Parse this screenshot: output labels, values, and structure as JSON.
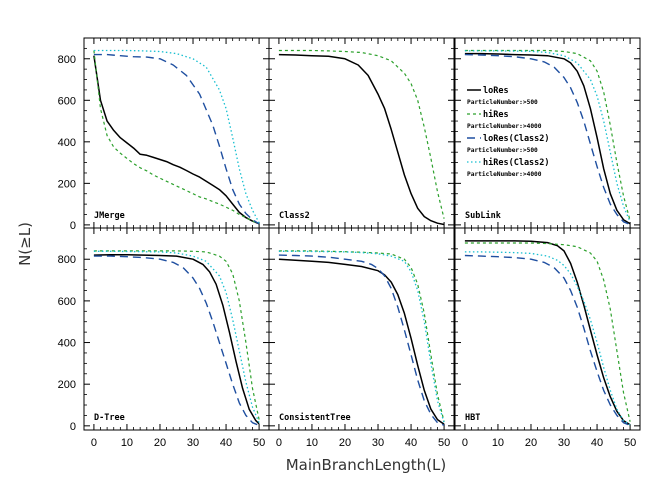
{
  "chart_data": {
    "type": "line",
    "xlabel": "MainBranchLength(L)",
    "ylabel": "N(≥L)",
    "xlim": [
      -3,
      53
    ],
    "xticks": [
      0,
      10,
      20,
      30,
      40,
      50
    ],
    "legend": {
      "placement": "inside SubLink panel, left",
      "entries": [
        {
          "name": "loRes",
          "sub": "ParticleNumber:>500"
        },
        {
          "name": "hiRes",
          "sub": "ParticleNumber:>4000"
        },
        {
          "name": "loRes(Class2)",
          "sub": "ParticleNumber:>500"
        },
        {
          "name": "hiRes(Class2)",
          "sub": "ParticleNumber:>4000"
        }
      ]
    },
    "colors": {
      "loRes": "#000000",
      "hiRes": "#2ca02c",
      "loRes(Class2)": "#1f4fa0",
      "hiRes(Class2)": "#17bfd0"
    },
    "rows": [
      {
        "ylim": [
          -15,
          900
        ],
        "yticks": [
          0,
          200,
          400,
          600,
          800
        ]
      },
      {
        "ylim": [
          -20,
          950
        ],
        "yticks": [
          0,
          200,
          400,
          600,
          800
        ]
      }
    ],
    "panels": [
      {
        "label": "JMerge",
        "series": [
          {
            "name": "loRes",
            "x": [
              0,
              2,
              4,
              6,
              8,
              10,
              12,
              14,
              16,
              18,
              20,
              22,
              24,
              26,
              28,
              30,
              32,
              34,
              36,
              38,
              40,
              42,
              44,
              46,
              48,
              50
            ],
            "y": [
              815,
              600,
              500,
              455,
              420,
              395,
              370,
              340,
              335,
              325,
              315,
              305,
              290,
              278,
              262,
              245,
              230,
              210,
              190,
              170,
              140,
              100,
              60,
              35,
              18,
              5
            ]
          },
          {
            "name": "hiRes",
            "x": [
              0,
              2,
              4,
              6,
              8,
              10,
              12,
              14,
              16,
              18,
              20,
              22,
              24,
              26,
              28,
              30,
              32,
              34,
              36,
              38,
              40,
              42,
              44,
              46,
              48,
              50
            ],
            "y": [
              840,
              560,
              430,
              375,
              345,
              320,
              295,
              275,
              260,
              240,
              225,
              210,
              195,
              180,
              165,
              150,
              135,
              125,
              112,
              100,
              85,
              70,
              50,
              35,
              18,
              5
            ]
          },
          {
            "name": "loRes(Class2)",
            "x": [
              0,
              4,
              8,
              12,
              16,
              20,
              24,
              28,
              32,
              36,
              38,
              40,
              42,
              44,
              46,
              48,
              50
            ],
            "y": [
              820,
              820,
              815,
              810,
              808,
              800,
              770,
              720,
              630,
              480,
              380,
              270,
              170,
              100,
              55,
              25,
              5
            ]
          },
          {
            "name": "hiRes(Class2)",
            "x": [
              0,
              5,
              10,
              15,
              20,
              25,
              30,
              34,
              38,
              40,
              42,
              44,
              46,
              48,
              50
            ],
            "y": [
              840,
              840,
              840,
              838,
              835,
              825,
              800,
              760,
              650,
              560,
              420,
              270,
              150,
              70,
              10
            ]
          }
        ]
      },
      {
        "label": "Class2",
        "series": [
          {
            "name": "loRes",
            "x": [
              0,
              5,
              10,
              15,
              20,
              24,
              27,
              30,
              32,
              34,
              36,
              38,
              40,
              42,
              44,
              46,
              48,
              50
            ],
            "y": [
              820,
              818,
              815,
              812,
              800,
              770,
              720,
              630,
              560,
              460,
              350,
              240,
              150,
              80,
              40,
              20,
              8,
              2
            ]
          },
          {
            "name": "hiRes",
            "x": [
              0,
              5,
              10,
              15,
              20,
              25,
              30,
              34,
              38,
              40,
              42,
              44,
              46,
              48,
              50
            ],
            "y": [
              840,
              840,
              840,
              838,
              835,
              830,
              815,
              790,
              730,
              680,
              600,
              470,
              320,
              160,
              30
            ]
          }
        ]
      },
      {
        "label": "SubLink",
        "series": [
          {
            "name": "loRes",
            "x": [
              0,
              5,
              10,
              15,
              20,
              25,
              30,
              32,
              34,
              36,
              38,
              40,
              42,
              44,
              46,
              48,
              50
            ],
            "y": [
              825,
              825,
              823,
              820,
              818,
              815,
              800,
              780,
              740,
              670,
              560,
              420,
              270,
              150,
              70,
              25,
              5
            ]
          },
          {
            "name": "hiRes",
            "x": [
              0,
              5,
              10,
              15,
              20,
              25,
              30,
              34,
              38,
              40,
              42,
              44,
              46,
              48,
              50
            ],
            "y": [
              840,
              840,
              840,
              840,
              840,
              840,
              835,
              825,
              790,
              740,
              640,
              480,
              300,
              140,
              20
            ]
          },
          {
            "name": "loRes(Class2)",
            "x": [
              0,
              5,
              10,
              15,
              20,
              24,
              27,
              30,
              32,
              34,
              36,
              38,
              40,
              42,
              44,
              46,
              48,
              50
            ],
            "y": [
              820,
              818,
              815,
              810,
              800,
              785,
              760,
              710,
              660,
              590,
              500,
              390,
              280,
              180,
              100,
              50,
              15,
              2
            ]
          },
          {
            "name": "hiRes(Class2)",
            "x": [
              0,
              5,
              10,
              15,
              20,
              25,
              30,
              34,
              38,
              40,
              42,
              44,
              46,
              48,
              50
            ],
            "y": [
              838,
              838,
              838,
              837,
              836,
              830,
              815,
              780,
              700,
              620,
              500,
              350,
              200,
              90,
              15
            ]
          }
        ]
      },
      {
        "label": "D-Tree",
        "series": [
          {
            "name": "loRes",
            "x": [
              0,
              5,
              10,
              15,
              20,
              25,
              30,
              33,
              35,
              37,
              39,
              41,
              43,
              45,
              47,
              49,
              50
            ],
            "y": [
              820,
              822,
              822,
              820,
              818,
              815,
              800,
              775,
              740,
              680,
              580,
              450,
              310,
              180,
              80,
              25,
              10
            ]
          },
          {
            "name": "hiRes",
            "x": [
              0,
              5,
              10,
              15,
              20,
              25,
              30,
              34,
              38,
              40,
              42,
              44,
              46,
              48,
              50
            ],
            "y": [
              840,
              840,
              840,
              840,
              840,
              840,
              838,
              835,
              815,
              790,
              730,
              600,
              400,
              180,
              30
            ]
          },
          {
            "name": "loRes(Class2)",
            "x": [
              0,
              5,
              10,
              15,
              20,
              24,
              27,
              30,
              32,
              34,
              36,
              38,
              40,
              42,
              44,
              46,
              48,
              50
            ],
            "y": [
              815,
              815,
              812,
              808,
              800,
              785,
              760,
              710,
              660,
              590,
              500,
              400,
              300,
              200,
              110,
              50,
              15,
              2
            ]
          },
          {
            "name": "hiRes(Class2)",
            "x": [
              0,
              5,
              10,
              15,
              20,
              25,
              30,
              34,
              38,
              40,
              42,
              44,
              46,
              48,
              50
            ],
            "y": [
              838,
              838,
              837,
              836,
              835,
              830,
              815,
              790,
              720,
              640,
              510,
              360,
              210,
              90,
              15
            ]
          }
        ]
      },
      {
        "label": "ConsistentTree",
        "series": [
          {
            "name": "loRes",
            "x": [
              0,
              5,
              10,
              15,
              20,
              25,
              30,
              32,
              34,
              36,
              38,
              40,
              42,
              44,
              46,
              48,
              50
            ],
            "y": [
              800,
              795,
              790,
              785,
              775,
              765,
              745,
              725,
              690,
              630,
              540,
              420,
              290,
              170,
              80,
              30,
              8
            ]
          },
          {
            "name": "hiRes",
            "x": [
              0,
              5,
              10,
              15,
              20,
              25,
              30,
              34,
              38,
              40,
              42,
              44,
              46,
              48,
              50
            ],
            "y": [
              840,
              840,
              840,
              838,
              836,
              834,
              830,
              825,
              800,
              760,
              680,
              540,
              340,
              150,
              20
            ]
          },
          {
            "name": "loRes(Class2)",
            "x": [
              0,
              5,
              10,
              15,
              20,
              25,
              28,
              30,
              32,
              34,
              36,
              38,
              40,
              42,
              44,
              46,
              48,
              50
            ],
            "y": [
              820,
              818,
              815,
              810,
              800,
              790,
              775,
              755,
              720,
              660,
              570,
              460,
              340,
              220,
              120,
              55,
              15,
              3
            ]
          },
          {
            "name": "hiRes(Class2)",
            "x": [
              0,
              5,
              10,
              15,
              20,
              25,
              30,
              34,
              38,
              40,
              42,
              44,
              46,
              48,
              50
            ],
            "y": [
              838,
              838,
              837,
              836,
              835,
              832,
              826,
              815,
              790,
              740,
              650,
              500,
              300,
              120,
              15
            ]
          }
        ]
      },
      {
        "label": "HBT",
        "series": [
          {
            "name": "loRes",
            "x": [
              0,
              5,
              10,
              15,
              20,
              25,
              28,
              30,
              32,
              34,
              36,
              38,
              40,
              42,
              44,
              46,
              48,
              50
            ],
            "y": [
              888,
              888,
              888,
              888,
              886,
              880,
              865,
              840,
              780,
              690,
              580,
              460,
              340,
              230,
              140,
              70,
              25,
              5
            ]
          },
          {
            "name": "hiRes",
            "x": [
              0,
              5,
              10,
              15,
              20,
              25,
              30,
              34,
              38,
              40,
              42,
              44,
              46,
              48,
              50
            ],
            "y": [
              878,
              878,
              878,
              878,
              878,
              875,
              870,
              860,
              830,
              790,
              700,
              560,
              360,
              160,
              20
            ]
          },
          {
            "name": "loRes(Class2)",
            "x": [
              0,
              5,
              10,
              15,
              20,
              24,
              27,
              30,
              32,
              34,
              36,
              38,
              40,
              42,
              44,
              46,
              48,
              50
            ],
            "y": [
              818,
              815,
              812,
              808,
              800,
              785,
              760,
              710,
              650,
              570,
              470,
              360,
              260,
              170,
              100,
              50,
              15,
              2
            ]
          },
          {
            "name": "hiRes(Class2)",
            "x": [
              0,
              5,
              10,
              15,
              20,
              25,
              28,
              30,
              32,
              34,
              36,
              38,
              40,
              42,
              44,
              46,
              48,
              50
            ],
            "y": [
              835,
              835,
              834,
              832,
              828,
              815,
              795,
              770,
              730,
              670,
              600,
              510,
              400,
              280,
              170,
              80,
              25,
              5
            ]
          }
        ]
      }
    ]
  }
}
